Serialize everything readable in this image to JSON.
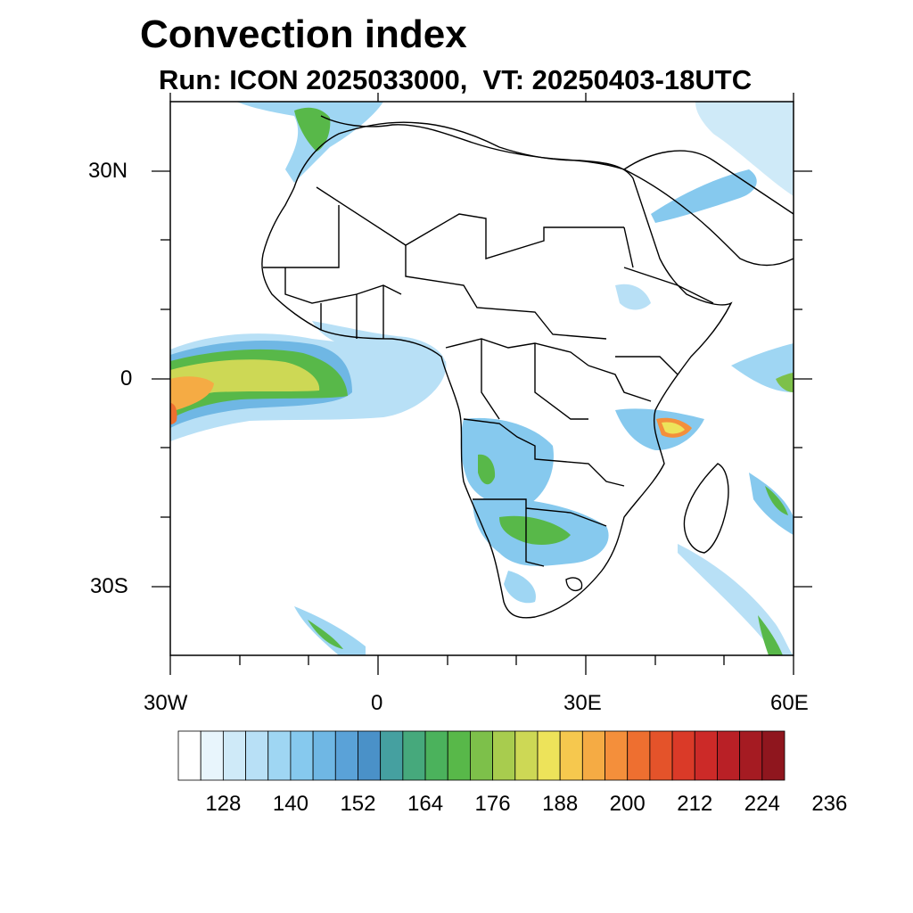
{
  "title": "Convection index",
  "subtitle": "Run: ICON 2025033000,  VT: 20250403-18UTC",
  "map": {
    "lon_range": [
      "30W",
      "60E"
    ],
    "lat_range": [
      "40S",
      "40N"
    ],
    "lat_labels": [
      "30N",
      "0",
      "30S"
    ],
    "lon_labels": [
      "30W",
      "0",
      "30E",
      "60E"
    ],
    "ocean_color": "#ffffff",
    "border_color": "#000000"
  },
  "colorbar": {
    "colors": [
      "#ffffff",
      "#e8f5fc",
      "#cfeaf8",
      "#b8e0f6",
      "#9fd6f3",
      "#86c9ee",
      "#6fb7e4",
      "#5aa2d8",
      "#4a91c8",
      "#45a0a0",
      "#46a97c",
      "#4bb25c",
      "#58b849",
      "#7dc04a",
      "#a8cc4e",
      "#cdd855",
      "#ede35a",
      "#f6c84e",
      "#f5ab44",
      "#f48f3b",
      "#ee6f30",
      "#e4532a",
      "#da3a28",
      "#cc2a28",
      "#b92026",
      "#a51b22",
      "#8f161e"
    ],
    "labels": [
      "128",
      "140",
      "152",
      "164",
      "176",
      "188",
      "200",
      "212",
      "224",
      "236"
    ]
  }
}
